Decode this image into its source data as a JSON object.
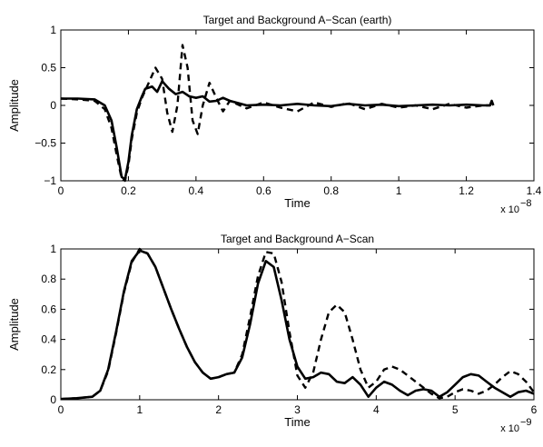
{
  "chart_data": [
    {
      "type": "line",
      "title": "Target and Background A−Scan (earth)",
      "xlabel": "Time",
      "ylabel": "Amplitude",
      "x_exponent_base": "x 10",
      "x_exponent_power": "−8",
      "xlim": [
        0,
        1.4
      ],
      "ylim": [
        -1,
        1
      ],
      "x_ticks": [
        0,
        0.2,
        0.4,
        0.6,
        0.8,
        1,
        1.2,
        1.4
      ],
      "x_tick_labels": [
        "0",
        "0.2",
        "0.4",
        "0.6",
        "0.8",
        "1",
        "1.2",
        "1.4"
      ],
      "y_ticks": [
        -1,
        -0.5,
        0,
        0.5,
        1
      ],
      "y_tick_labels": [
        "−1",
        "−0.5",
        "0",
        "0.5",
        "1"
      ],
      "grid": false,
      "series": [
        {
          "style": "solid",
          "color": "#000000",
          "x": [
            0,
            0.05,
            0.1,
            0.13,
            0.15,
            0.165,
            0.18,
            0.19,
            0.2,
            0.21,
            0.225,
            0.24,
            0.25,
            0.27,
            0.285,
            0.3,
            0.32,
            0.34,
            0.36,
            0.38,
            0.4,
            0.42,
            0.44,
            0.46,
            0.48,
            0.5,
            0.55,
            0.6,
            0.65,
            0.7,
            0.75,
            0.8,
            0.85,
            0.9,
            0.95,
            1.0,
            1.05,
            1.1,
            1.15,
            1.2,
            1.25,
            1.27,
            1.275,
            1.28
          ],
          "y": [
            0.09,
            0.09,
            0.08,
            0.0,
            -0.2,
            -0.55,
            -0.95,
            -0.98,
            -0.75,
            -0.4,
            -0.05,
            0.12,
            0.22,
            0.25,
            0.18,
            0.32,
            0.22,
            0.15,
            0.18,
            0.12,
            0.1,
            0.12,
            0.05,
            0.06,
            0.1,
            0.06,
            0.0,
            0.01,
            0.0,
            0.02,
            0.0,
            -0.01,
            0.02,
            0.0,
            0.01,
            -0.01,
            0.0,
            0.01,
            0.0,
            0.01,
            0.0,
            0.0,
            0.06,
            0.0
          ]
        },
        {
          "style": "dashed",
          "color": "#000000",
          "x": [
            0,
            0.05,
            0.1,
            0.13,
            0.15,
            0.165,
            0.18,
            0.19,
            0.2,
            0.21,
            0.225,
            0.24,
            0.26,
            0.28,
            0.3,
            0.315,
            0.33,
            0.345,
            0.36,
            0.375,
            0.39,
            0.405,
            0.42,
            0.44,
            0.46,
            0.48,
            0.5,
            0.55,
            0.6,
            0.65,
            0.7,
            0.75,
            0.8,
            0.85,
            0.9,
            0.95,
            1.0,
            1.05,
            1.1,
            1.15,
            1.2,
            1.25,
            1.27,
            1.275,
            1.28
          ],
          "y": [
            0.09,
            0.08,
            0.06,
            -0.05,
            -0.3,
            -0.65,
            -0.97,
            -1.0,
            -0.8,
            -0.45,
            -0.1,
            0.1,
            0.3,
            0.5,
            0.35,
            -0.1,
            -0.35,
            0.0,
            0.8,
            0.5,
            -0.2,
            -0.38,
            0.0,
            0.3,
            0.1,
            -0.08,
            0.06,
            -0.04,
            0.04,
            -0.03,
            -0.08,
            0.04,
            -0.02,
            0.03,
            -0.05,
            0.02,
            -0.03,
            0.0,
            -0.05,
            0.02,
            -0.03,
            0.0,
            0.0,
            0.04,
            0.0
          ]
        }
      ]
    },
    {
      "type": "line",
      "title": "Target and Background A−Scan",
      "xlabel": "Time",
      "ylabel": "Amplitude",
      "x_exponent_base": "x 10",
      "x_exponent_power": "−9",
      "xlim": [
        0,
        6
      ],
      "ylim": [
        0,
        1
      ],
      "x_ticks": [
        0,
        1,
        2,
        3,
        4,
        5,
        6
      ],
      "x_tick_labels": [
        "0",
        "1",
        "2",
        "3",
        "4",
        "5",
        "6"
      ],
      "y_ticks": [
        0,
        0.2,
        0.4,
        0.6,
        0.8,
        1
      ],
      "y_tick_labels": [
        "0",
        "0.2",
        "0.4",
        "0.6",
        "0.8",
        "1"
      ],
      "grid": false,
      "series": [
        {
          "style": "solid",
          "color": "#000000",
          "x": [
            0,
            0.2,
            0.4,
            0.5,
            0.6,
            0.7,
            0.8,
            0.9,
            1.0,
            1.1,
            1.2,
            1.3,
            1.4,
            1.5,
            1.6,
            1.7,
            1.8,
            1.9,
            2.0,
            2.1,
            2.2,
            2.3,
            2.4,
            2.5,
            2.6,
            2.7,
            2.8,
            2.9,
            3.0,
            3.1,
            3.2,
            3.3,
            3.4,
            3.5,
            3.6,
            3.7,
            3.8,
            3.9,
            4.0,
            4.1,
            4.2,
            4.3,
            4.4,
            4.5,
            4.6,
            4.7,
            4.8,
            4.9,
            5.0,
            5.1,
            5.2,
            5.3,
            5.4,
            5.5,
            5.6,
            5.7,
            5.8,
            5.9,
            6.0
          ],
          "y": [
            0.005,
            0.01,
            0.02,
            0.06,
            0.2,
            0.45,
            0.72,
            0.92,
            0.99,
            0.97,
            0.88,
            0.74,
            0.6,
            0.47,
            0.35,
            0.25,
            0.18,
            0.14,
            0.15,
            0.17,
            0.18,
            0.28,
            0.5,
            0.77,
            0.92,
            0.88,
            0.66,
            0.4,
            0.22,
            0.14,
            0.15,
            0.18,
            0.17,
            0.12,
            0.11,
            0.15,
            0.1,
            0.02,
            0.08,
            0.12,
            0.1,
            0.06,
            0.03,
            0.06,
            0.07,
            0.06,
            0.02,
            0.05,
            0.1,
            0.15,
            0.17,
            0.16,
            0.12,
            0.08,
            0.05,
            0.02,
            0.05,
            0.06,
            0.04
          ]
        },
        {
          "style": "dashed",
          "color": "#000000",
          "x": [
            0,
            0.2,
            0.4,
            0.5,
            0.6,
            0.7,
            0.8,
            0.9,
            1.0,
            1.1,
            1.2,
            1.3,
            1.4,
            1.5,
            1.6,
            1.7,
            1.8,
            1.9,
            2.0,
            2.1,
            2.2,
            2.3,
            2.4,
            2.5,
            2.6,
            2.7,
            2.8,
            2.9,
            3.0,
            3.1,
            3.2,
            3.3,
            3.4,
            3.5,
            3.6,
            3.7,
            3.8,
            3.9,
            4.0,
            4.1,
            4.2,
            4.3,
            4.4,
            4.5,
            4.6,
            4.7,
            4.8,
            4.9,
            5.0,
            5.1,
            5.2,
            5.3,
            5.4,
            5.5,
            5.6,
            5.7,
            5.8,
            5.9,
            6.0
          ],
          "y": [
            0.005,
            0.01,
            0.02,
            0.06,
            0.19,
            0.44,
            0.71,
            0.91,
            1.0,
            0.97,
            0.88,
            0.74,
            0.6,
            0.47,
            0.35,
            0.25,
            0.18,
            0.14,
            0.15,
            0.17,
            0.18,
            0.3,
            0.55,
            0.82,
            0.98,
            0.97,
            0.78,
            0.45,
            0.16,
            0.08,
            0.18,
            0.4,
            0.58,
            0.63,
            0.58,
            0.4,
            0.2,
            0.08,
            0.12,
            0.2,
            0.22,
            0.2,
            0.16,
            0.12,
            0.08,
            0.04,
            0.01,
            0.02,
            0.05,
            0.07,
            0.06,
            0.04,
            0.06,
            0.1,
            0.15,
            0.19,
            0.17,
            0.12,
            0.05
          ]
        }
      ]
    }
  ]
}
